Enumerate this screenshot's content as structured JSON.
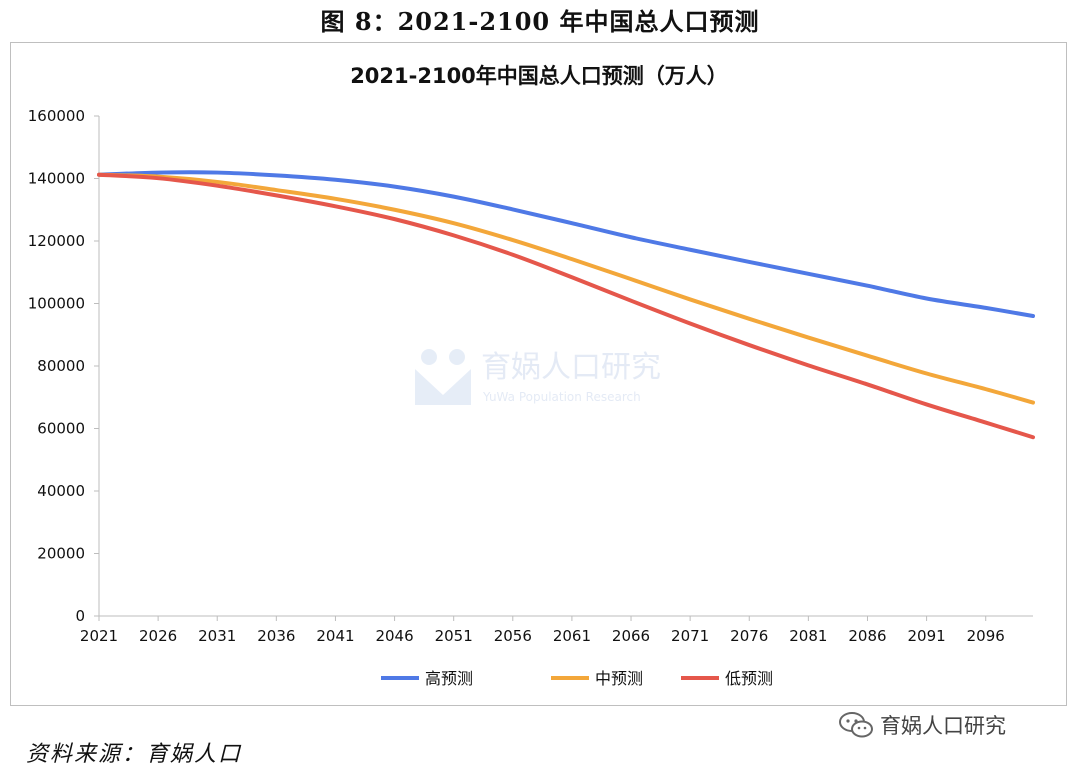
{
  "figure_title": "图 8：2021-2100 年中国总人口预测",
  "source": "资料来源：育娲人口",
  "wechat_label": "育娲人口研究",
  "watermark": {
    "text": "育娲人口研究",
    "sub": "YuWa Population Research"
  },
  "chart_data": {
    "type": "line",
    "title": "2021-2100年中国总人口预测（万人）",
    "xlabel": "",
    "ylabel": "",
    "ylim": [
      0,
      160000
    ],
    "yticks": [
      0,
      20000,
      40000,
      60000,
      80000,
      100000,
      120000,
      140000,
      160000
    ],
    "xticks": [
      2021,
      2026,
      2031,
      2036,
      2041,
      2046,
      2051,
      2056,
      2061,
      2066,
      2071,
      2076,
      2081,
      2086,
      2091,
      2096
    ],
    "xlim": [
      2021,
      2100
    ],
    "grid": false,
    "legend_position": "bottom",
    "x": [
      2021,
      2026,
      2031,
      2036,
      2041,
      2046,
      2051,
      2056,
      2061,
      2066,
      2071,
      2076,
      2081,
      2086,
      2091,
      2096,
      2100
    ],
    "series": [
      {
        "name": "高预测",
        "color": "#4f79e6",
        "values": [
          141200,
          141900,
          141900,
          141000,
          139600,
          137400,
          134200,
          130100,
          125700,
          121200,
          117200,
          113300,
          109500,
          105700,
          101600,
          98600,
          96000
        ]
      },
      {
        "name": "中预测",
        "color": "#f3a73a",
        "values": [
          141200,
          140600,
          138900,
          136300,
          133500,
          130000,
          125700,
          120300,
          114200,
          107800,
          101300,
          95100,
          89100,
          83300,
          77600,
          72600,
          68300
        ]
      },
      {
        "name": "低预测",
        "color": "#e5574b",
        "values": [
          141200,
          140100,
          137700,
          134600,
          131100,
          127000,
          121800,
          115600,
          108400,
          100900,
          93600,
          86700,
          80200,
          74100,
          67700,
          61900,
          57200
        ]
      }
    ]
  }
}
